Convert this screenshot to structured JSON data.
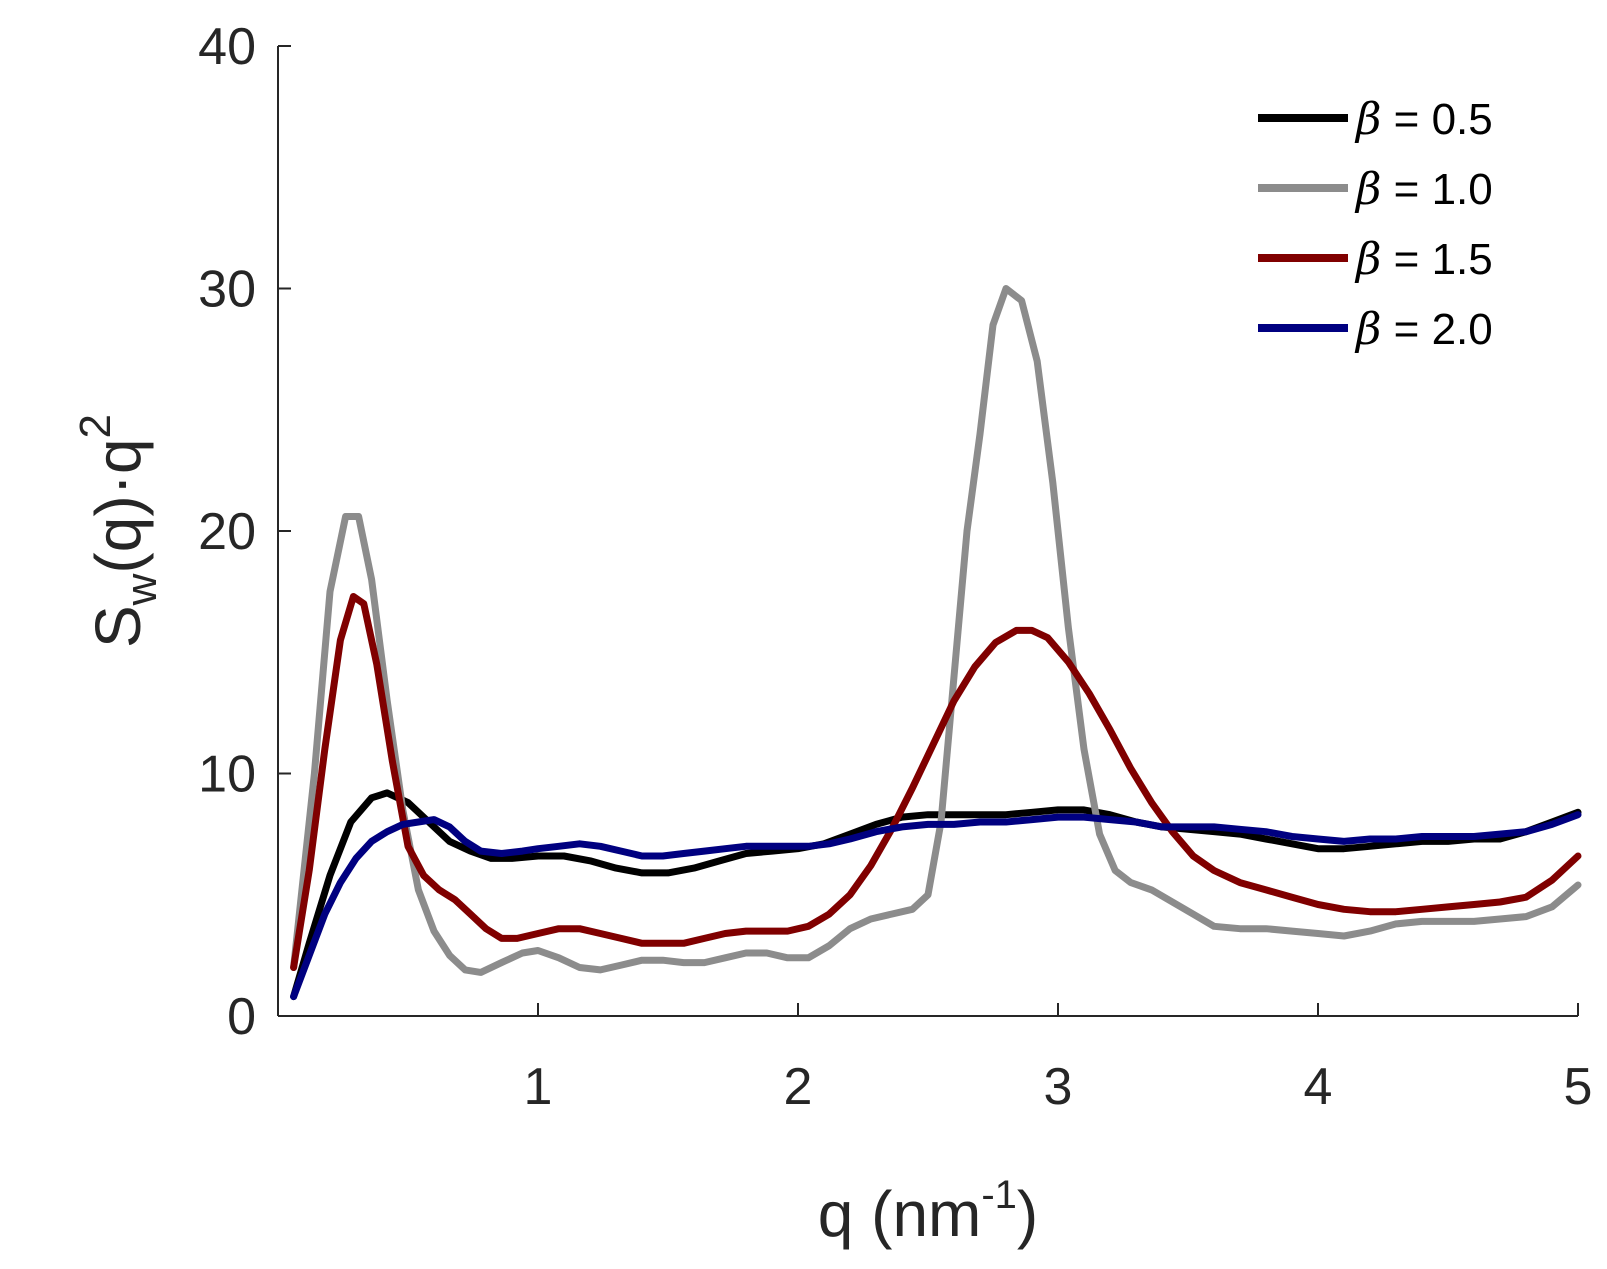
{
  "chart_data": {
    "type": "line",
    "title": "",
    "xlabel": {
      "base": "q (nm",
      "sup": "-1",
      "suffix": ")"
    },
    "ylabel": {
      "base": "S",
      "sub": "w",
      "mid": "(q)·q",
      "sup": "2"
    },
    "xlim": [
      0,
      5
    ],
    "ylim": [
      0,
      40
    ],
    "xticks": [
      1,
      2,
      3,
      4,
      5
    ],
    "yticks": [
      0,
      10,
      20,
      30,
      40
    ],
    "grid": false,
    "legend_position": "top-right",
    "series": [
      {
        "name": "β = 0.5",
        "symbol": "β",
        "value_text": " = 0.5",
        "color": "#000000",
        "x": [
          0.06,
          0.12,
          0.2,
          0.28,
          0.36,
          0.42,
          0.5,
          0.58,
          0.66,
          0.74,
          0.82,
          0.9,
          1.0,
          1.1,
          1.2,
          1.3,
          1.4,
          1.5,
          1.6,
          1.7,
          1.8,
          1.9,
          2.0,
          2.1,
          2.2,
          2.3,
          2.4,
          2.5,
          2.6,
          2.7,
          2.8,
          2.9,
          3.0,
          3.1,
          3.2,
          3.3,
          3.4,
          3.5,
          3.6,
          3.7,
          3.8,
          3.9,
          4.0,
          4.1,
          4.2,
          4.3,
          4.4,
          4.5,
          4.6,
          4.7,
          4.8,
          4.9,
          5.0
        ],
        "y": [
          0.8,
          3.0,
          5.8,
          8.0,
          9.0,
          9.2,
          8.8,
          8.0,
          7.2,
          6.8,
          6.5,
          6.5,
          6.6,
          6.6,
          6.4,
          6.1,
          5.9,
          5.9,
          6.1,
          6.4,
          6.7,
          6.8,
          6.9,
          7.1,
          7.5,
          7.9,
          8.2,
          8.3,
          8.3,
          8.3,
          8.3,
          8.4,
          8.5,
          8.5,
          8.3,
          8.0,
          7.8,
          7.7,
          7.6,
          7.5,
          7.3,
          7.1,
          6.9,
          6.9,
          7.0,
          7.1,
          7.2,
          7.2,
          7.3,
          7.3,
          7.6,
          8.0,
          8.4
        ]
      },
      {
        "name": "β = 1.0",
        "symbol": "β",
        "value_text": " = 1.0",
        "color": "#8c8c8c",
        "x": [
          0.06,
          0.14,
          0.2,
          0.26,
          0.31,
          0.36,
          0.42,
          0.48,
          0.54,
          0.6,
          0.66,
          0.72,
          0.78,
          0.86,
          0.94,
          1.0,
          1.08,
          1.16,
          1.24,
          1.32,
          1.4,
          1.48,
          1.56,
          1.64,
          1.72,
          1.8,
          1.88,
          1.96,
          2.04,
          2.12,
          2.2,
          2.28,
          2.36,
          2.44,
          2.5,
          2.55,
          2.6,
          2.65,
          2.7,
          2.75,
          2.8,
          2.86,
          2.92,
          2.98,
          3.04,
          3.1,
          3.16,
          3.22,
          3.28,
          3.36,
          3.44,
          3.52,
          3.6,
          3.7,
          3.8,
          3.9,
          4.0,
          4.1,
          4.2,
          4.3,
          4.4,
          4.5,
          4.6,
          4.7,
          4.8,
          4.9,
          5.0
        ],
        "y": [
          2.0,
          10.0,
          17.5,
          20.6,
          20.6,
          18.0,
          13.0,
          8.5,
          5.2,
          3.5,
          2.5,
          1.9,
          1.8,
          2.2,
          2.6,
          2.7,
          2.4,
          2.0,
          1.9,
          2.1,
          2.3,
          2.3,
          2.2,
          2.2,
          2.4,
          2.6,
          2.6,
          2.4,
          2.4,
          2.9,
          3.6,
          4.0,
          4.2,
          4.4,
          5.0,
          8.0,
          14.0,
          20.0,
          24.0,
          28.5,
          30.0,
          29.5,
          27.0,
          22.0,
          16.0,
          11.0,
          7.5,
          6.0,
          5.5,
          5.2,
          4.7,
          4.2,
          3.7,
          3.6,
          3.6,
          3.5,
          3.4,
          3.3,
          3.5,
          3.8,
          3.9,
          3.9,
          3.9,
          4.0,
          4.1,
          4.5,
          5.4
        ]
      },
      {
        "name": "β = 1.5",
        "symbol": "β",
        "value_text": " = 1.5",
        "color": "#800000",
        "x": [
          0.06,
          0.12,
          0.18,
          0.24,
          0.29,
          0.33,
          0.38,
          0.44,
          0.5,
          0.56,
          0.62,
          0.68,
          0.74,
          0.8,
          0.86,
          0.92,
          1.0,
          1.08,
          1.16,
          1.24,
          1.32,
          1.4,
          1.48,
          1.56,
          1.64,
          1.72,
          1.8,
          1.88,
          1.96,
          2.04,
          2.12,
          2.2,
          2.28,
          2.36,
          2.44,
          2.52,
          2.6,
          2.68,
          2.76,
          2.84,
          2.9,
          2.96,
          3.04,
          3.12,
          3.2,
          3.28,
          3.36,
          3.44,
          3.52,
          3.6,
          3.7,
          3.8,
          3.9,
          4.0,
          4.1,
          4.2,
          4.3,
          4.4,
          4.5,
          4.6,
          4.7,
          4.8,
          4.9,
          5.0
        ],
        "y": [
          2.0,
          6.0,
          11.0,
          15.5,
          17.3,
          17.0,
          14.5,
          10.5,
          7.0,
          5.8,
          5.2,
          4.8,
          4.2,
          3.6,
          3.2,
          3.2,
          3.4,
          3.6,
          3.6,
          3.4,
          3.2,
          3.0,
          3.0,
          3.0,
          3.2,
          3.4,
          3.5,
          3.5,
          3.5,
          3.7,
          4.2,
          5.0,
          6.2,
          7.7,
          9.4,
          11.2,
          13.0,
          14.4,
          15.4,
          15.9,
          15.9,
          15.6,
          14.6,
          13.3,
          11.8,
          10.2,
          8.8,
          7.6,
          6.6,
          6.0,
          5.5,
          5.2,
          4.9,
          4.6,
          4.4,
          4.3,
          4.3,
          4.4,
          4.5,
          4.6,
          4.7,
          4.9,
          5.6,
          6.6
        ]
      },
      {
        "name": "β = 2.0",
        "symbol": "β",
        "value_text": " = 2.0",
        "color": "#000080",
        "x": [
          0.06,
          0.12,
          0.18,
          0.24,
          0.3,
          0.36,
          0.42,
          0.48,
          0.54,
          0.6,
          0.66,
          0.72,
          0.78,
          0.86,
          0.94,
          1.0,
          1.08,
          1.16,
          1.24,
          1.32,
          1.4,
          1.48,
          1.56,
          1.64,
          1.72,
          1.8,
          1.88,
          1.96,
          2.04,
          2.12,
          2.2,
          2.3,
          2.4,
          2.5,
          2.6,
          2.7,
          2.8,
          2.9,
          3.0,
          3.1,
          3.2,
          3.3,
          3.4,
          3.5,
          3.6,
          3.7,
          3.8,
          3.9,
          4.0,
          4.1,
          4.2,
          4.3,
          4.4,
          4.5,
          4.6,
          4.7,
          4.8,
          4.9,
          5.0
        ],
        "y": [
          0.8,
          2.5,
          4.2,
          5.5,
          6.5,
          7.2,
          7.6,
          7.9,
          8.0,
          8.1,
          7.8,
          7.2,
          6.8,
          6.7,
          6.8,
          6.9,
          7.0,
          7.1,
          7.0,
          6.8,
          6.6,
          6.6,
          6.7,
          6.8,
          6.9,
          7.0,
          7.0,
          7.0,
          7.0,
          7.1,
          7.3,
          7.6,
          7.8,
          7.9,
          7.9,
          8.0,
          8.0,
          8.1,
          8.2,
          8.2,
          8.1,
          8.0,
          7.8,
          7.8,
          7.8,
          7.7,
          7.6,
          7.4,
          7.3,
          7.2,
          7.3,
          7.3,
          7.4,
          7.4,
          7.4,
          7.5,
          7.6,
          7.9,
          8.3
        ]
      }
    ]
  }
}
